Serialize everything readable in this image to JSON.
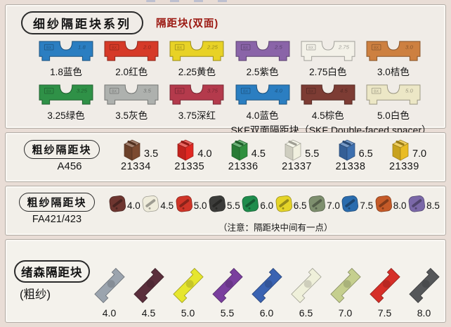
{
  "section1": {
    "title": "细纱隔距块系列",
    "subtitle": "隔距块(双面)",
    "subtitle_color": "#9b1710",
    "brand_mark": "BX",
    "footer": "SKF双面隔距块（SKF Double-faced spacer）",
    "rows": [
      [
        {
          "size": "1.8",
          "label": "1.8蓝色",
          "color": "#2b7ec1"
        },
        {
          "size": "2.0",
          "label": "2.0红色",
          "color": "#d63a28"
        },
        {
          "size": "2.25",
          "label": "2.25黄色",
          "color": "#e8d226"
        },
        {
          "size": "2.5",
          "label": "2.5紫色",
          "color": "#8a64a8"
        },
        {
          "size": "2.75",
          "label": "2.75白色",
          "color": "#f3f1e8"
        },
        {
          "size": "3.0",
          "label": "3.0桔色",
          "color": "#cd8040"
        }
      ],
      [
        {
          "size": "3.25",
          "label": "3.25绿色",
          "color": "#2f9147"
        },
        {
          "size": "3.5",
          "label": "3.5灰色",
          "color": "#aeb1ae"
        },
        {
          "size": "3.75",
          "label": "3.75深红",
          "color": "#b43a4c"
        },
        {
          "size": "4.0",
          "label": "4.0蓝色",
          "color": "#2b7ec1"
        },
        {
          "size": "4.5",
          "label": "4.5棕色",
          "color": "#7d3c34"
        },
        {
          "size": "5.0",
          "label": "5.0白色",
          "color": "#ece7c6"
        }
      ]
    ]
  },
  "section2": {
    "title": "粗纱隔距块",
    "model": "A456",
    "items": [
      {
        "size": "3.5",
        "code": "21334",
        "color": "#7c4a30"
      },
      {
        "size": "4.0",
        "code": "21335",
        "color": "#e02822"
      },
      {
        "size": "4.5",
        "code": "21336",
        "color": "#2f8f3e"
      },
      {
        "size": "5.5",
        "code": "21337",
        "color": "#f1f0df"
      },
      {
        "size": "6.5",
        "code": "21338",
        "color": "#3d6fae"
      },
      {
        "size": "7.0",
        "code": "21339",
        "color": "#e9bc23"
      }
    ]
  },
  "section3": {
    "title": "粗纱隔距块",
    "model": "FA421/423",
    "note": "（注意：隔距块中间有一点）",
    "items": [
      {
        "size": "4.0",
        "color": "#6e3630"
      },
      {
        "size": "4.5",
        "color": "#efecdb"
      },
      {
        "size": "5.0",
        "color": "#cf3528"
      },
      {
        "size": "5.5",
        "color": "#3c3c3a"
      },
      {
        "size": "6.0",
        "color": "#1f8c4c"
      },
      {
        "size": "6.5",
        "color": "#e5d428"
      },
      {
        "size": "7.0",
        "color": "#7e8f6e"
      },
      {
        "size": "7.5",
        "color": "#2a6cae"
      },
      {
        "size": "8.0",
        "color": "#c55a28"
      },
      {
        "size": "8.5",
        "color": "#7b68a8"
      }
    ]
  },
  "section4": {
    "title": "绪森隔距块",
    "subtitle": "(粗纱)",
    "items": [
      {
        "size": "4.0",
        "color": "#9ba4ae"
      },
      {
        "size": "4.5",
        "color": "#5b2f3c"
      },
      {
        "size": "5.0",
        "color": "#e6e62e"
      },
      {
        "size": "5.5",
        "color": "#7a3f9e"
      },
      {
        "size": "6.0",
        "color": "#3a63b2"
      },
      {
        "size": "6.5",
        "color": "#eff0da"
      },
      {
        "size": "7.0",
        "color": "#c5cf8e"
      },
      {
        "size": "7.5",
        "color": "#d62f28"
      },
      {
        "size": "8.0",
        "color": "#555759"
      }
    ]
  }
}
